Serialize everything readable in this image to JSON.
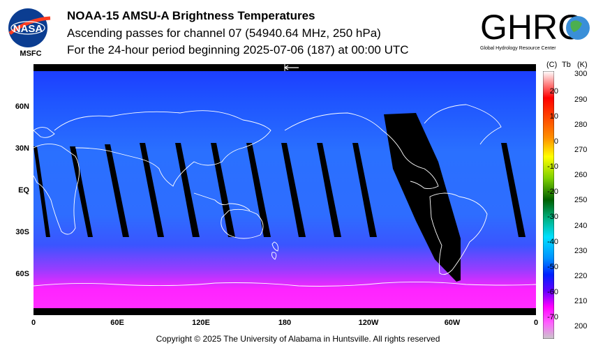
{
  "header": {
    "title": "NOAA-15 AMSU-A Brightness Temperatures",
    "subtitle_channel": "Ascending passes for channel 07 (54940.64 MHz, 250 hPa)",
    "subtitle_period": "For the 24-hour period beginning 2025-07-06 (187) at 00:00 UTC"
  },
  "logos": {
    "nasa_text": "NASA",
    "nasa_sub": "MSFC",
    "ghrc_text": "GHRC",
    "ghrc_sub": "Global Hydrology Resource Center"
  },
  "map": {
    "lat_labels": [
      "60N",
      "30N",
      "EQ",
      "30S",
      "60S"
    ],
    "lon_labels": [
      "0",
      "60E",
      "120E",
      "180",
      "120W",
      "60W",
      "0"
    ],
    "colors": {
      "ocean_top": "#1f4dff",
      "ocean_mid": "#2d66ff",
      "polar_south": "#ff1eff",
      "swath_gap": "#000000",
      "coast": "#ffffff"
    }
  },
  "colorbar": {
    "head_c": "(C)",
    "head_tb": "Tb",
    "head_k": "(K)",
    "celsius": [
      "20",
      "10",
      "0",
      "-10",
      "-20",
      "-30",
      "-40",
      "-50",
      "-60",
      "-70"
    ],
    "kelvin": [
      "300",
      "290",
      "280",
      "270",
      "260",
      "250",
      "240",
      "230",
      "220",
      "210",
      "200"
    ]
  },
  "footer": {
    "copyright": "Copyright © 2025 The University of Alabama in Huntsville.  All rights reserved"
  }
}
